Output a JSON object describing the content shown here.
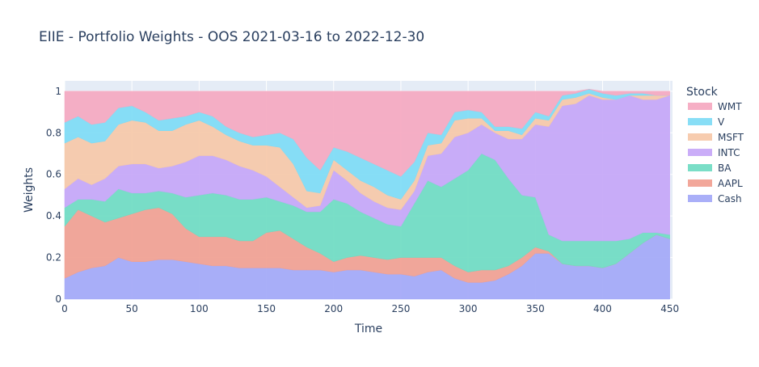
{
  "chart_data": {
    "type": "area",
    "title": "EIIE - Portfolio Weights - OOS 2021-03-16 to 2022-12-30",
    "xlabel": "Time",
    "ylabel": "Weights",
    "xlim": [
      0,
      452
    ],
    "ylim": [
      0,
      1.05
    ],
    "x_ticks": [
      0,
      50,
      100,
      150,
      200,
      250,
      300,
      350,
      400,
      450
    ],
    "y_ticks": [
      0,
      0.2,
      0.4,
      0.6,
      0.8,
      1
    ],
    "y_tick_labels": [
      "0",
      "0.2",
      "0.4",
      "0.6",
      "0.8",
      "1"
    ],
    "legend_title": "Stock",
    "legend_placement": "right",
    "stacked": true,
    "grid": true,
    "plot_bg": "#E5ECF6",
    "x": [
      0,
      10,
      20,
      30,
      40,
      50,
      60,
      70,
      80,
      90,
      100,
      110,
      120,
      130,
      140,
      150,
      160,
      170,
      180,
      190,
      200,
      210,
      220,
      230,
      240,
      250,
      260,
      270,
      280,
      290,
      300,
      310,
      320,
      330,
      340,
      350,
      360,
      370,
      380,
      390,
      400,
      410,
      420,
      430,
      440,
      450
    ],
    "series": [
      {
        "name": "Cash",
        "color": "#A3A8F7",
        "values": [
          0.1,
          0.13,
          0.15,
          0.16,
          0.2,
          0.18,
          0.18,
          0.19,
          0.19,
          0.18,
          0.17,
          0.16,
          0.16,
          0.15,
          0.15,
          0.15,
          0.15,
          0.14,
          0.14,
          0.14,
          0.13,
          0.14,
          0.14,
          0.13,
          0.12,
          0.12,
          0.11,
          0.13,
          0.14,
          0.1,
          0.08,
          0.08,
          0.09,
          0.12,
          0.16,
          0.22,
          0.22,
          0.17,
          0.16,
          0.16,
          0.15,
          0.17,
          0.22,
          0.27,
          0.31,
          0.29
        ]
      },
      {
        "name": "AAPL",
        "color": "#F19F91",
        "values": [
          0.25,
          0.3,
          0.25,
          0.21,
          0.19,
          0.23,
          0.25,
          0.25,
          0.22,
          0.16,
          0.13,
          0.14,
          0.14,
          0.13,
          0.13,
          0.17,
          0.18,
          0.15,
          0.11,
          0.08,
          0.05,
          0.06,
          0.07,
          0.07,
          0.07,
          0.08,
          0.09,
          0.07,
          0.06,
          0.06,
          0.05,
          0.06,
          0.05,
          0.04,
          0.04,
          0.03,
          0.01,
          0.0,
          0.0,
          0.0,
          0.0,
          0.0,
          0.0,
          0.0,
          0.0,
          0.0
        ]
      },
      {
        "name": "BA",
        "color": "#6FDBC2",
        "values": [
          0.09,
          0.05,
          0.08,
          0.1,
          0.14,
          0.1,
          0.08,
          0.08,
          0.1,
          0.15,
          0.2,
          0.21,
          0.2,
          0.2,
          0.2,
          0.17,
          0.14,
          0.16,
          0.17,
          0.2,
          0.3,
          0.26,
          0.21,
          0.19,
          0.17,
          0.15,
          0.26,
          0.37,
          0.34,
          0.42,
          0.49,
          0.56,
          0.53,
          0.42,
          0.3,
          0.24,
          0.08,
          0.11,
          0.12,
          0.12,
          0.13,
          0.11,
          0.07,
          0.05,
          0.01,
          0.02
        ]
      },
      {
        "name": "INTC",
        "color": "#C5A6F7",
        "values": [
          0.09,
          0.1,
          0.07,
          0.11,
          0.11,
          0.14,
          0.14,
          0.11,
          0.13,
          0.17,
          0.19,
          0.18,
          0.17,
          0.16,
          0.14,
          0.1,
          0.07,
          0.04,
          0.02,
          0.03,
          0.14,
          0.11,
          0.09,
          0.08,
          0.08,
          0.08,
          0.06,
          0.12,
          0.16,
          0.2,
          0.18,
          0.14,
          0.13,
          0.19,
          0.27,
          0.35,
          0.52,
          0.65,
          0.66,
          0.7,
          0.68,
          0.68,
          0.69,
          0.64,
          0.64,
          0.67
        ]
      },
      {
        "name": "MSFT",
        "color": "#F6C8A8",
        "values": [
          0.22,
          0.2,
          0.2,
          0.18,
          0.2,
          0.21,
          0.2,
          0.18,
          0.17,
          0.18,
          0.17,
          0.14,
          0.12,
          0.12,
          0.12,
          0.15,
          0.19,
          0.16,
          0.08,
          0.06,
          0.05,
          0.05,
          0.06,
          0.07,
          0.06,
          0.05,
          0.05,
          0.05,
          0.05,
          0.08,
          0.07,
          0.03,
          0.01,
          0.04,
          0.02,
          0.03,
          0.03,
          0.03,
          0.03,
          0.01,
          0.01,
          0.0,
          0.0,
          0.02,
          0.02,
          0.0
        ]
      },
      {
        "name": "V",
        "color": "#7EDBF5",
        "values": [
          0.1,
          0.1,
          0.09,
          0.09,
          0.08,
          0.07,
          0.05,
          0.05,
          0.06,
          0.04,
          0.04,
          0.05,
          0.04,
          0.04,
          0.04,
          0.05,
          0.07,
          0.12,
          0.16,
          0.11,
          0.06,
          0.09,
          0.11,
          0.11,
          0.12,
          0.11,
          0.09,
          0.06,
          0.04,
          0.04,
          0.04,
          0.03,
          0.02,
          0.02,
          0.03,
          0.03,
          0.02,
          0.02,
          0.02,
          0.02,
          0.02,
          0.02,
          0.01,
          0.01,
          0.0,
          0.0
        ]
      },
      {
        "name": "WMT",
        "color": "#F5A8C0",
        "values": [
          0.15,
          0.12,
          0.16,
          0.15,
          0.08,
          0.07,
          0.1,
          0.14,
          0.13,
          0.12,
          0.1,
          0.12,
          0.17,
          0.2,
          0.22,
          0.21,
          0.2,
          0.23,
          0.32,
          0.38,
          0.27,
          0.29,
          0.32,
          0.35,
          0.38,
          0.41,
          0.34,
          0.2,
          0.21,
          0.1,
          0.09,
          0.1,
          0.17,
          0.17,
          0.18,
          0.1,
          0.12,
          0.02,
          0.01,
          0.0,
          0.01,
          0.02,
          0.01,
          0.01,
          0.02,
          0.02
        ]
      }
    ]
  }
}
